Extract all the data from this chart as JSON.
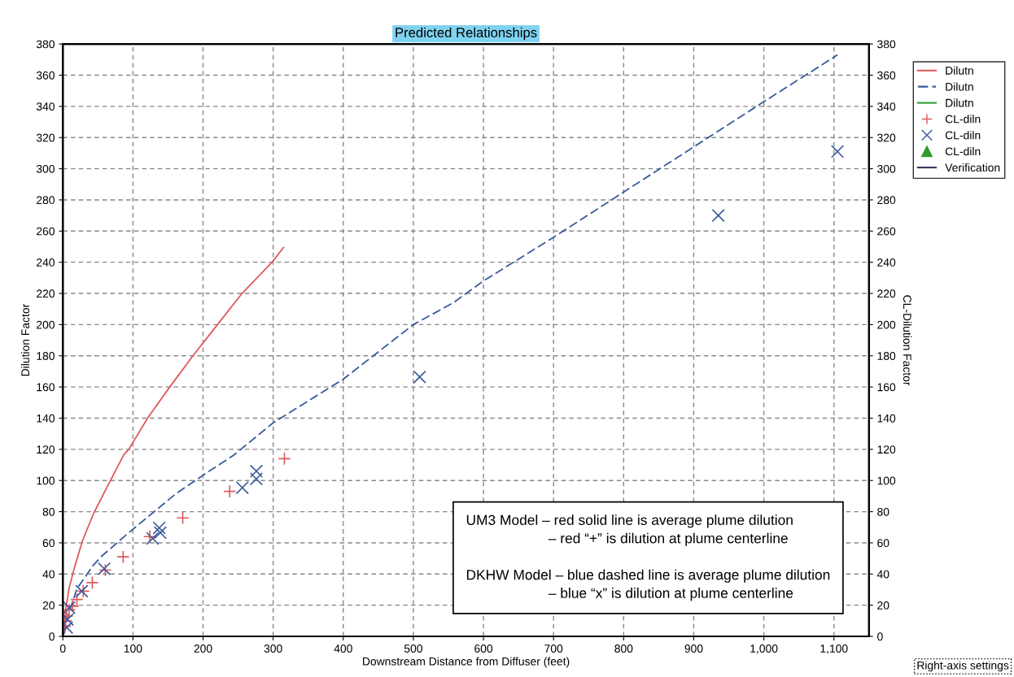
{
  "chart_data": {
    "type": "line",
    "title": "Predicted Relationships",
    "xlabel": "Downstream Distance from Diffuser (feet)",
    "ylabel": "Dilution Factor",
    "y2label": "CL-Dilution Factor",
    "xlim": [
      0,
      1150
    ],
    "xticks": [
      0,
      100,
      200,
      300,
      400,
      500,
      600,
      700,
      800,
      900,
      {
        "value": 1000,
        "label": "1,000"
      },
      {
        "value": 1100,
        "label": "1,100"
      }
    ],
    "ylim": [
      0,
      380
    ],
    "yticks": [
      0,
      20,
      40,
      60,
      80,
      100,
      120,
      140,
      160,
      180,
      200,
      220,
      240,
      260,
      280,
      300,
      320,
      340,
      360,
      380
    ],
    "y2lim": [
      0,
      380
    ],
    "y2ticks": [
      0,
      20,
      40,
      60,
      80,
      100,
      120,
      140,
      160,
      180,
      200,
      220,
      240,
      260,
      280,
      300,
      320,
      340,
      360,
      380
    ],
    "grid": true,
    "legend": "right",
    "series": [
      {
        "name": "Dilutn",
        "color": "#e05a5a",
        "line_style": "solid",
        "marker": "none",
        "x": [
          0.8,
          1.6,
          4,
          8.6,
          16.4,
          28,
          44,
          63,
          86.7,
          94,
          121.4,
          152.5,
          185.6,
          220.6,
          255.6,
          298.4,
          314.8
        ],
        "values": [
          1.4,
          6.5,
          16.8,
          30.5,
          44,
          61.4,
          79,
          95.7,
          116.3,
          120,
          140.4,
          160,
          180,
          200,
          220,
          240,
          249.5
        ]
      },
      {
        "name": "Dilutn",
        "color": "#3a5a9a",
        "line_style": "dashed",
        "marker": "none",
        "x": [
          1.5,
          8.6,
          20,
          44,
          55.5,
          85,
          98,
          161,
          202,
          243,
          300,
          400,
          500,
          557,
          600,
          700,
          800,
          900,
          1000,
          1105
        ],
        "values": [
          1.4,
          15,
          30.5,
          46,
          51.5,
          63,
          68,
          91.4,
          104,
          116,
          137,
          165,
          200,
          214,
          228,
          256,
          285,
          314,
          343,
          373
        ]
      },
      {
        "name": "Dilutn",
        "color": "#2e9a2e",
        "line_style": "solid",
        "marker": "none"
      },
      {
        "name": "CL-diln",
        "type": "scatter",
        "axis": "y2",
        "color": "#e05a5a",
        "marker": "plus",
        "x": [
          3,
          4,
          5.5,
          9,
          14,
          20,
          29,
          42,
          60.5,
          86,
          124,
          171,
          238,
          316
        ],
        "values": [
          6.5,
          10,
          13,
          17,
          19.4,
          23.7,
          29,
          34.5,
          42.5,
          51,
          64,
          76,
          93,
          114
        ]
      },
      {
        "name": "CL-diln",
        "type": "scatter",
        "axis": "y2",
        "color": "#3a5a9a",
        "marker": "cross",
        "x": [
          5.5,
          6.6,
          9,
          27,
          59,
          128,
          137.5,
          139,
          256,
          276,
          276,
          509,
          935,
          1105
        ],
        "values": [
          5.7,
          10.8,
          18.5,
          29,
          43.4,
          62.8,
          69.6,
          66.5,
          95.4,
          101,
          106,
          166.4,
          270,
          311
        ]
      },
      {
        "name": "CL-diln",
        "type": "scatter",
        "axis": "y2",
        "color": "#2e9a2e",
        "marker": "triangle"
      },
      {
        "name": "Verification",
        "color": "#333355",
        "line_style": "solid",
        "marker": "none"
      }
    ],
    "annotations": [
      "UM3 Model – red solid line is average plume dilution\n– red “+” is dilution at plume centerline",
      "DKHW Model – blue dashed line is average plume dilution\n– blue “x” is dilution at plume centerline",
      "Right-axis settings"
    ]
  }
}
